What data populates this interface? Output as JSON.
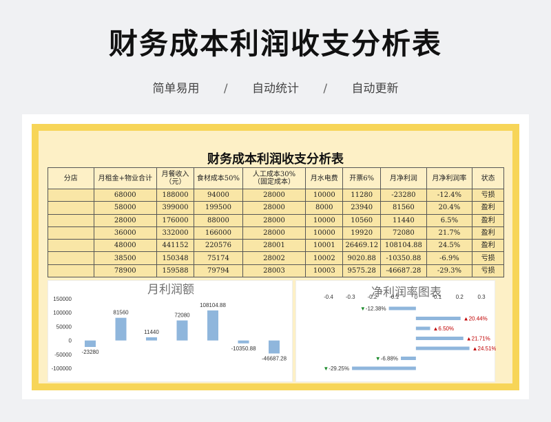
{
  "header": {
    "title": "财务成本利润收支分析表",
    "subtitle": [
      "简单易用",
      "/",
      "自动统计",
      "/",
      "自动更新"
    ]
  },
  "sheet": {
    "title": "财务成本利润收支分析表",
    "columns": [
      "分店",
      "月租金+物业合计",
      "月餐收入（元）",
      "食材成本50%",
      "人工成本30%（固定成本）",
      "月水电费",
      "开票6%",
      "月净利润",
      "月净利润率",
      "状态"
    ],
    "columns_lines": [
      [
        "分店"
      ],
      [
        "月租金+物业合计"
      ],
      [
        "月餐收入",
        "（元）"
      ],
      [
        "食材成本50%"
      ],
      [
        "人工成本30%",
        "（固定成本）"
      ],
      [
        "月水电费"
      ],
      [
        "开票6%"
      ],
      [
        "月净利润"
      ],
      [
        "月净利润率"
      ],
      [
        "状态"
      ]
    ],
    "rows": [
      [
        "",
        "68000",
        "188000",
        "94000",
        "28000",
        "10000",
        "11280",
        "-23280",
        "-12.4%",
        "亏损"
      ],
      [
        "",
        "58000",
        "399000",
        "199500",
        "28000",
        "8000",
        "23940",
        "81560",
        "20.4%",
        "盈利"
      ],
      [
        "",
        "28000",
        "176000",
        "88000",
        "28000",
        "10000",
        "10560",
        "11440",
        "6.5%",
        "盈利"
      ],
      [
        "",
        "36000",
        "332000",
        "166000",
        "28000",
        "10000",
        "19920",
        "72080",
        "21.7%",
        "盈利"
      ],
      [
        "",
        "48000",
        "441152",
        "220576",
        "28001",
        "10001",
        "26469.12",
        "108104.88",
        "24.5%",
        "盈利"
      ],
      [
        "",
        "38500",
        "150348",
        "75174",
        "28002",
        "10002",
        "9020.88",
        "-10350.88",
        "-6.9%",
        "亏损"
      ],
      [
        "",
        "78900",
        "159588",
        "79794",
        "28003",
        "10003",
        "9575.28",
        "-46687.28",
        "-29.3%",
        "亏损"
      ]
    ]
  },
  "chart_data": [
    {
      "type": "bar",
      "title": "月利润额",
      "values": [
        -23280,
        81560,
        11440,
        72080,
        108104.88,
        -10350.88,
        -46687.28
      ],
      "labels": [
        "-23280",
        "81560",
        "11440",
        "72080",
        "108104.88",
        "-10350.88",
        "-46687.28"
      ],
      "ylim": [
        -100000,
        150000
      ],
      "yticks": [
        "150000",
        "100000",
        "50000",
        "0",
        "-50000",
        "-100000"
      ],
      "yticks_values": [
        150000,
        100000,
        50000,
        0,
        -50000,
        -100000
      ],
      "bar_color": "#8fb6dc"
    },
    {
      "type": "bar",
      "orientation": "horizontal",
      "title": "净利润率图表",
      "values": [
        -0.1238,
        0.2044,
        0.065,
        0.2171,
        0.2451,
        -0.0688,
        -0.2925
      ],
      "labels": [
        "-12.38%",
        "20.44%",
        "6.50%",
        "21.71%",
        "24.51%",
        "-6.88%",
        "-29.25%"
      ],
      "xlim": [
        -0.4,
        0.3
      ],
      "xticks": [
        "-0.4",
        "-0.3",
        "-0.2",
        "-0.1",
        "0",
        "0.1",
        "0.2",
        "0.3"
      ],
      "xticks_values": [
        -0.4,
        -0.3,
        -0.2,
        -0.1,
        0,
        0.1,
        0.2,
        0.3
      ],
      "bar_color": "#8fb6dc",
      "positive_color": "#c00000",
      "negative_color": "#1a8a2a"
    }
  ]
}
